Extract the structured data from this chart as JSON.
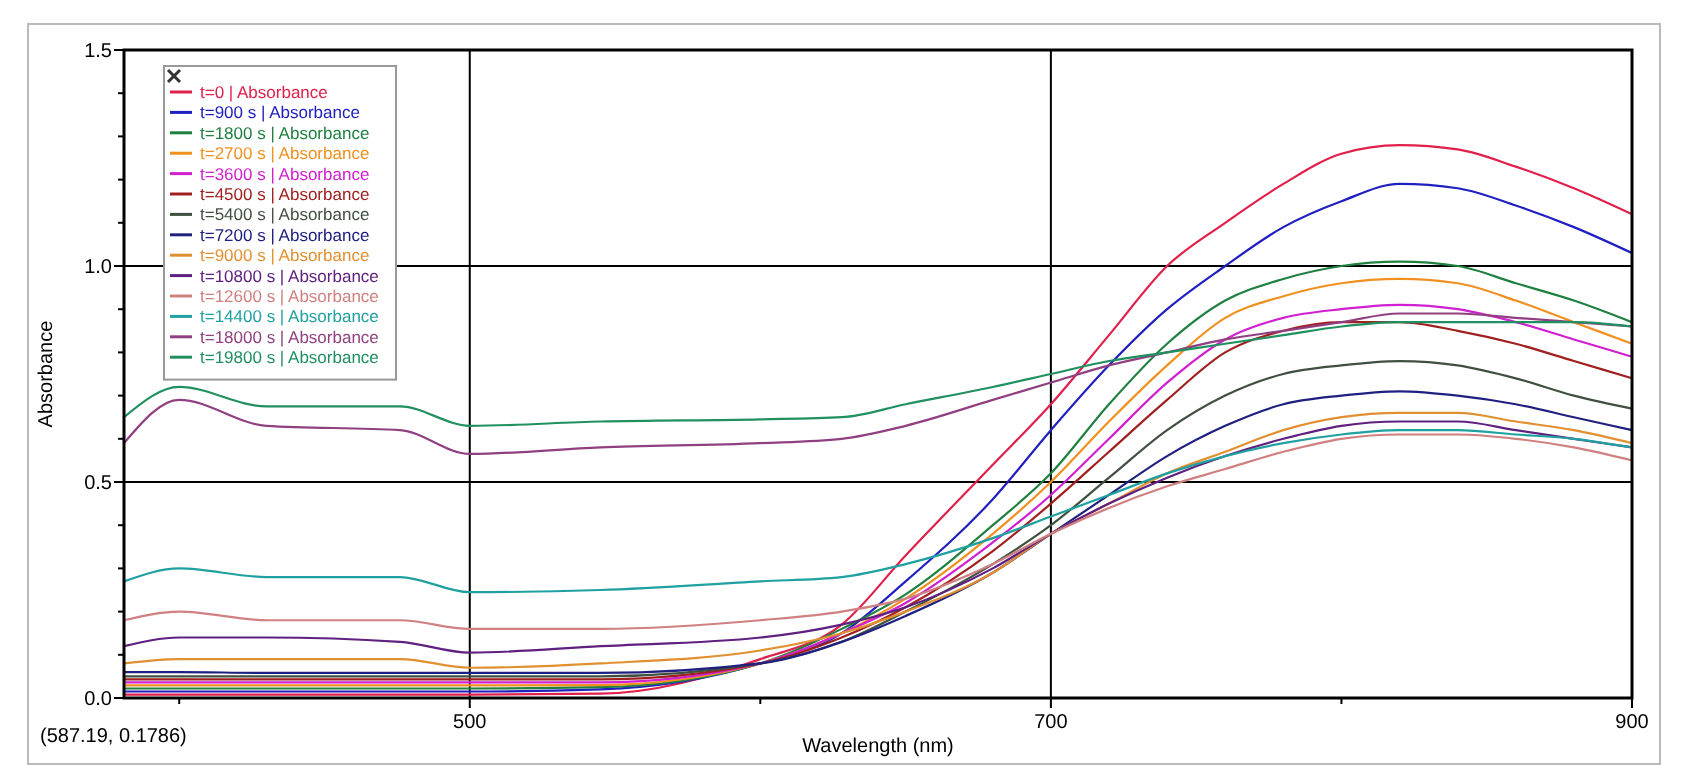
{
  "chart_data": {
    "type": "line",
    "xlabel": "Wavelength (nm)",
    "ylabel": "Absorbance",
    "annotations": [
      "(587.19, 0.1786)"
    ],
    "x": [
      381,
      400,
      430,
      476,
      500,
      545,
      600,
      628,
      650,
      680,
      700,
      720,
      740,
      760,
      780,
      800,
      820,
      840,
      860,
      880,
      900
    ],
    "xlim": [
      381,
      900
    ],
    "xticks": [
      {
        "value": 400,
        "label": null
      },
      500,
      {
        "value": 600,
        "label": null
      },
      700,
      {
        "value": 800,
        "label": null
      },
      900
    ],
    "ylim": [
      0,
      1.5
    ],
    "yticks": [
      {
        "value": 0,
        "label": "0.0"
      },
      {
        "value": 0.1,
        "label": null
      },
      {
        "value": 0.2,
        "label": null
      },
      {
        "value": 0.3,
        "label": null
      },
      {
        "value": 0.4,
        "label": null
      },
      0.5,
      {
        "value": 0.6,
        "label": null
      },
      {
        "value": 0.7,
        "label": null
      },
      {
        "value": 0.8,
        "label": null
      },
      {
        "value": 0.9,
        "label": null
      },
      {
        "value": 1,
        "label": "1.0"
      },
      {
        "value": 1.1,
        "label": null
      },
      {
        "value": 1.2,
        "label": null
      },
      {
        "value": 1.3,
        "label": null
      },
      {
        "value": 1.4,
        "label": null
      },
      1.5
    ],
    "grid": true,
    "legend": "top left",
    "line_style": "solid",
    "marker": "none",
    "series": [
      {
        "name": "t=0 | Absorbance",
        "color": "#e0204a",
        "values": [
          0.008,
          0.008,
          0.008,
          0.008,
          0.008,
          0.01,
          0.09,
          0.17,
          0.33,
          0.54,
          0.68,
          0.84,
          1.0,
          1.1,
          1.19,
          1.26,
          1.28,
          1.27,
          1.23,
          1.18,
          1.12
        ]
      },
      {
        "name": "t=900 s | Absorbance",
        "color": "#2020c0",
        "values": [
          0.015,
          0.015,
          0.015,
          0.015,
          0.015,
          0.02,
          0.08,
          0.15,
          0.27,
          0.46,
          0.62,
          0.77,
          0.9,
          1.0,
          1.09,
          1.15,
          1.19,
          1.18,
          1.14,
          1.09,
          1.03
        ]
      },
      {
        "name": "t=1800 s | Absorbance",
        "color": "#208040",
        "values": [
          0.022,
          0.022,
          0.022,
          0.022,
          0.022,
          0.025,
          0.08,
          0.16,
          0.24,
          0.4,
          0.52,
          0.68,
          0.82,
          0.92,
          0.97,
          1.0,
          1.01,
          1.0,
          0.96,
          0.92,
          0.87
        ]
      },
      {
        "name": "t=2700 s | Absorbance",
        "color": "#f09020",
        "values": [
          0.029,
          0.029,
          0.029,
          0.029,
          0.029,
          0.03,
          0.08,
          0.15,
          0.23,
          0.38,
          0.5,
          0.64,
          0.77,
          0.88,
          0.93,
          0.96,
          0.97,
          0.96,
          0.92,
          0.87,
          0.82
        ]
      },
      {
        "name": "t=3600 s | Absorbance",
        "color": "#d020d0",
        "values": [
          0.036,
          0.036,
          0.036,
          0.036,
          0.036,
          0.036,
          0.08,
          0.15,
          0.22,
          0.36,
          0.47,
          0.6,
          0.73,
          0.83,
          0.88,
          0.9,
          0.91,
          0.9,
          0.87,
          0.83,
          0.79
        ]
      },
      {
        "name": "t=4500 s | Absorbance",
        "color": "#a02020",
        "values": [
          0.043,
          0.043,
          0.043,
          0.043,
          0.043,
          0.043,
          0.08,
          0.14,
          0.21,
          0.34,
          0.45,
          0.57,
          0.69,
          0.8,
          0.85,
          0.87,
          0.87,
          0.85,
          0.82,
          0.78,
          0.74
        ]
      },
      {
        "name": "t=5400 s | Absorbance",
        "color": "#405040",
        "values": [
          0.05,
          0.05,
          0.05,
          0.05,
          0.05,
          0.05,
          0.08,
          0.13,
          0.2,
          0.31,
          0.4,
          0.51,
          0.62,
          0.7,
          0.75,
          0.77,
          0.78,
          0.77,
          0.74,
          0.7,
          0.67
        ]
      },
      {
        "name": "t=7200 s | Absorbance",
        "color": "#202080",
        "values": [
          0.06,
          0.06,
          0.058,
          0.058,
          0.058,
          0.058,
          0.08,
          0.13,
          0.19,
          0.29,
          0.38,
          0.47,
          0.56,
          0.63,
          0.68,
          0.7,
          0.71,
          0.7,
          0.68,
          0.65,
          0.62
        ]
      },
      {
        "name": "t=9000 s | Absorbance",
        "color": "#e09030",
        "values": [
          0.08,
          0.09,
          0.09,
          0.09,
          0.07,
          0.08,
          0.11,
          0.15,
          0.2,
          0.29,
          0.38,
          0.45,
          0.52,
          0.57,
          0.62,
          0.65,
          0.66,
          0.66,
          0.64,
          0.62,
          0.59
        ]
      },
      {
        "name": "t=10800 s | Absorbance",
        "color": "#602080",
        "values": [
          0.12,
          0.14,
          0.14,
          0.13,
          0.105,
          0.12,
          0.14,
          0.17,
          0.21,
          0.3,
          0.38,
          0.45,
          0.51,
          0.56,
          0.6,
          0.63,
          0.64,
          0.64,
          0.62,
          0.6,
          0.58
        ]
      },
      {
        "name": "t=12600 s | Absorbance",
        "color": "#d08080",
        "values": [
          0.18,
          0.2,
          0.18,
          0.18,
          0.16,
          0.16,
          0.18,
          0.2,
          0.23,
          0.31,
          0.38,
          0.44,
          0.49,
          0.53,
          0.57,
          0.6,
          0.61,
          0.61,
          0.6,
          0.58,
          0.55
        ]
      },
      {
        "name": "t=14400 s | Absorbance",
        "color": "#20a0a0",
        "values": [
          0.27,
          0.3,
          0.28,
          0.28,
          0.245,
          0.25,
          0.27,
          0.28,
          0.31,
          0.37,
          0.42,
          0.47,
          0.52,
          0.56,
          0.59,
          0.61,
          0.62,
          0.62,
          0.61,
          0.6,
          0.58
        ]
      },
      {
        "name": "t=18000 s | Absorbance",
        "color": "#904080",
        "values": [
          0.59,
          0.69,
          0.63,
          0.62,
          0.565,
          0.58,
          0.59,
          0.6,
          0.63,
          0.69,
          0.73,
          0.77,
          0.8,
          0.83,
          0.85,
          0.87,
          0.89,
          0.89,
          0.88,
          0.87,
          0.86
        ]
      },
      {
        "name": "t=19800 s | Absorbance",
        "color": "#209060",
        "values": [
          0.65,
          0.72,
          0.675,
          0.675,
          0.63,
          0.64,
          0.645,
          0.65,
          0.68,
          0.72,
          0.75,
          0.78,
          0.8,
          0.82,
          0.84,
          0.86,
          0.87,
          0.87,
          0.87,
          0.87,
          0.86
        ]
      }
    ]
  }
}
